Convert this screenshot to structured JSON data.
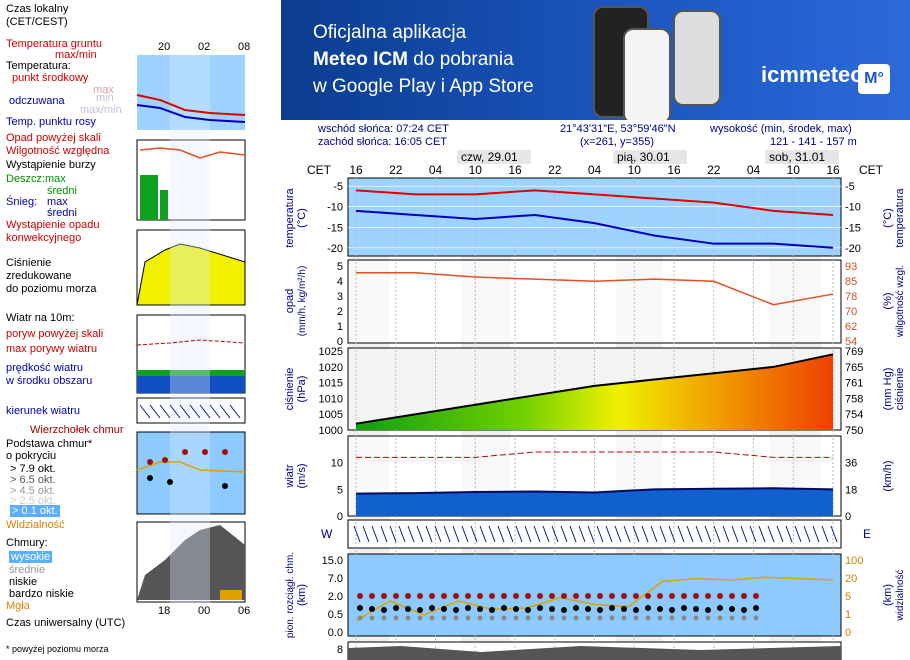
{
  "banner": {
    "line1": "Oficjalna aplikacja",
    "line2_bold": "Meteo ICM",
    "line2_rest": " do pobrania",
    "line3": "w Google Play i App Store",
    "logo": "icmmeteo",
    "logo_badge": "M°"
  },
  "info": {
    "sunrise": "wschód słońca: 07:24 CET",
    "sunset": "zachód słońca: 16:05 CET",
    "coords": "21°43'31\"E, 53°59'46\"N",
    "grid": "(x=261,  y=355)",
    "height_label": "wysokość (min, środek, max)",
    "height_values": "121 - 141 - 157 m"
  },
  "legend": {
    "local_time": "Czas lokalny",
    "local_time2": "(CET/CEST)",
    "ground_temp": "Temperatura gruntu",
    "ground_temp2": "max/min",
    "temperature": "Temperatura:",
    "mid_point": "punkt środkowy",
    "max": "max",
    "min": "min",
    "feels_like": "odczuwana",
    "max_min": "max/min",
    "dew_point": "Temp. punktu rosy",
    "precip_above": "Opad powyżej skali",
    "rel_humidity": "Wilgotność względna",
    "storm": "Wystąpienie burzy",
    "rain": "Deszcz:",
    "rain_max": "max",
    "avg": "średni",
    "snow": "Śnieg:",
    "snow_max": "max",
    "snow_avg": "średni",
    "convective": "Wystąpienie opadu",
    "convective2": "konwekcyjnego",
    "pressure": "Ciśnienie",
    "pressure2": "zredukowane",
    "pressure3": "do poziomu morza",
    "wind": "Wiatr na 10m:",
    "gust_above": "poryw powyżej skali",
    "max_gust": "max porywy wiatru",
    "wind_speed": "prędkość wiatru",
    "wind_speed2": "w środku obszaru",
    "wind_dir": "kierunek wiatru",
    "cloud_top": "Wierzchołek chmur",
    "cloud_base": "Podstawa chmur*",
    "cloud_base2": "o pokryciu",
    "okt79": "> 7.9 okt.",
    "okt65": "> 6.5 okt.",
    "okt45": "> 4.5 okt.",
    "okt25": "> 2.5 okt.",
    "okt01": "> 0.1 okt.",
    "visibility": "Widzialność",
    "clouds": "Chmury:",
    "high": "wysokie",
    "medium": "średnie",
    "low": "niskie",
    "very_low": "bardzo niskie",
    "fog": "Mgła",
    "utc": "Czas uniwersalny (UTC)",
    "footnote": "* powyżej poziomu morza",
    "top_ticks": [
      "20",
      "02",
      "08"
    ],
    "bottom_ticks": [
      "18",
      "00",
      "06"
    ]
  },
  "main": {
    "cet": "CET",
    "days": [
      "czw, 29.01",
      "pią, 30.01",
      "sob, 31.01"
    ],
    "hours": [
      "16",
      "22",
      "04",
      "10",
      "16",
      "22",
      "04",
      "10",
      "16",
      "22",
      "04",
      "10",
      "16"
    ],
    "panels": {
      "temp": {
        "left": "temperatura",
        "left_unit": "(°C)",
        "right": "temperatura",
        "right_unit": "(°C)",
        "ticks": [
          "-5",
          "-10",
          "-15",
          "-20"
        ]
      },
      "precip": {
        "left": "opad",
        "left_unit": "(mm/h, kg/m²/h)",
        "right": "wilgotność wzgl.",
        "right_unit": "(%)",
        "ticks_left": [
          "5",
          "4",
          "3",
          "2",
          "1",
          "0"
        ],
        "ticks_right": [
          "93",
          "85",
          "78",
          "70",
          "62",
          "54"
        ]
      },
      "pressure": {
        "left": "ciśnienie",
        "left_unit": "(hPa)",
        "right": "ciśnienie",
        "right_unit": "(mm Hg)",
        "ticks_left": [
          "1025",
          "1020",
          "1015",
          "1010",
          "1005",
          "1000"
        ],
        "ticks_right": [
          "769",
          "765",
          "761",
          "758",
          "754",
          "750"
        ]
      },
      "wind": {
        "left": "wiatr",
        "left_unit": "(m/s)",
        "right": "(km/h)",
        "ticks_left": [
          "10",
          "5",
          "0"
        ],
        "ticks_right": [
          "36",
          "18",
          "0"
        ]
      },
      "wind_dir": {
        "symbol_left": "W",
        "symbol_right": "E"
      },
      "cloud": {
        "left": "pion. rozciągł. chm.",
        "left_unit": "(km)",
        "right": "widzialność",
        "right_unit": "(km)",
        "ticks_left": [
          "15.0",
          "7.0",
          "2.0",
          "0.5",
          "0.0"
        ],
        "ticks_right": [
          "100",
          "20",
          "5",
          "1",
          "0"
        ]
      },
      "cloud_cover": {
        "tick": "8"
      }
    }
  },
  "colors": {
    "accent": "#1d58c4",
    "temp_red": "#e00000",
    "temp_blue": "#0000c0",
    "humidity": "#e05020",
    "wind_green": "#10a010",
    "wind_blue": "#1060d0",
    "sky": "#8ccaff"
  },
  "chart_data": [
    {
      "type": "line",
      "title": "temperatura (°C)",
      "x": [
        "czw 16",
        "czw 22",
        "pią 04",
        "pią 10",
        "pią 16",
        "pią 22",
        "sob 04",
        "sob 10",
        "sob 16"
      ],
      "series": [
        {
          "name": "max",
          "values": [
            -6,
            -7,
            -7,
            -6,
            -7,
            -8,
            -9,
            -11,
            -12
          ]
        },
        {
          "name": "min",
          "values": [
            -11,
            -12,
            -13,
            -12,
            -14,
            -17,
            -19,
            -19,
            -20
          ]
        }
      ],
      "ylim": [
        -22,
        -3
      ]
    },
    {
      "type": "line",
      "title": "wilgotność wzgl. (%)",
      "x": [
        "czw 16",
        "czw 22",
        "pią 04",
        "pią 10",
        "pią 16",
        "pią 22",
        "sob 04",
        "sob 10",
        "sob 16"
      ],
      "values": [
        87,
        87,
        85,
        84,
        83,
        84,
        83,
        72,
        77
      ],
      "ylim": [
        54,
        93
      ]
    },
    {
      "type": "area",
      "title": "ciśnienie (hPa)",
      "x": [
        "czw 16",
        "czw 22",
        "pią 04",
        "pią 10",
        "pią 16",
        "pią 22",
        "sob 04",
        "sob 10",
        "sob 16"
      ],
      "values": [
        1002,
        1005,
        1008,
        1011,
        1014,
        1016,
        1018,
        1020,
        1024
      ],
      "ylim": [
        1000,
        1026
      ]
    },
    {
      "type": "area",
      "title": "wiatr (m/s)",
      "x": [
        "czw 16",
        "czw 22",
        "pią 04",
        "pią 10",
        "pią 16",
        "pią 22",
        "sob 04",
        "sob 10",
        "sob 16"
      ],
      "series": [
        {
          "name": "prędkość wiatru",
          "values": [
            4.2,
            4.3,
            4.5,
            4.6,
            4.4,
            5.0,
            5.1,
            5.2,
            5.0
          ]
        },
        {
          "name": "max porywy wiatru",
          "values": [
            11,
            11,
            11,
            12,
            12,
            12,
            12,
            11,
            11
          ]
        }
      ],
      "ylim": [
        0,
        15
      ]
    }
  ]
}
